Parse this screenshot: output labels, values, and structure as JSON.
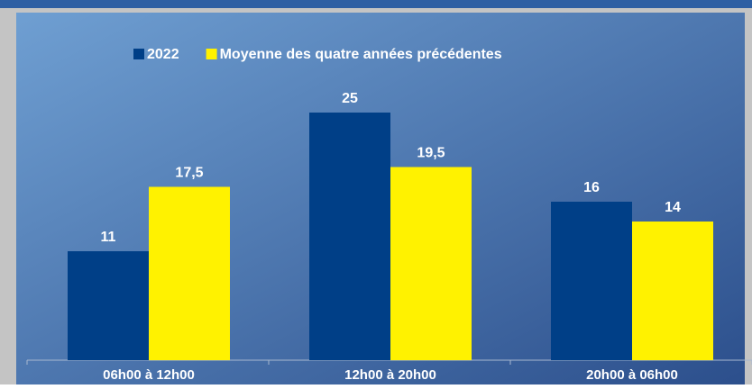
{
  "chart_data": {
    "type": "bar",
    "categories": [
      "06h00 à 12h00",
      "12h00 à 20h00",
      "20h00 à 06h00"
    ],
    "series": [
      {
        "name": "2022",
        "color": "#003f87",
        "values": [
          11,
          25,
          16
        ],
        "value_labels": [
          "11",
          "25",
          "16"
        ]
      },
      {
        "name": "Moyenne des quatre années précédentes",
        "color": "#fff200",
        "values": [
          17.5,
          19.5,
          14
        ],
        "value_labels": [
          "17,5",
          "19,5",
          "14"
        ]
      }
    ],
    "legend": "top"
  }
}
